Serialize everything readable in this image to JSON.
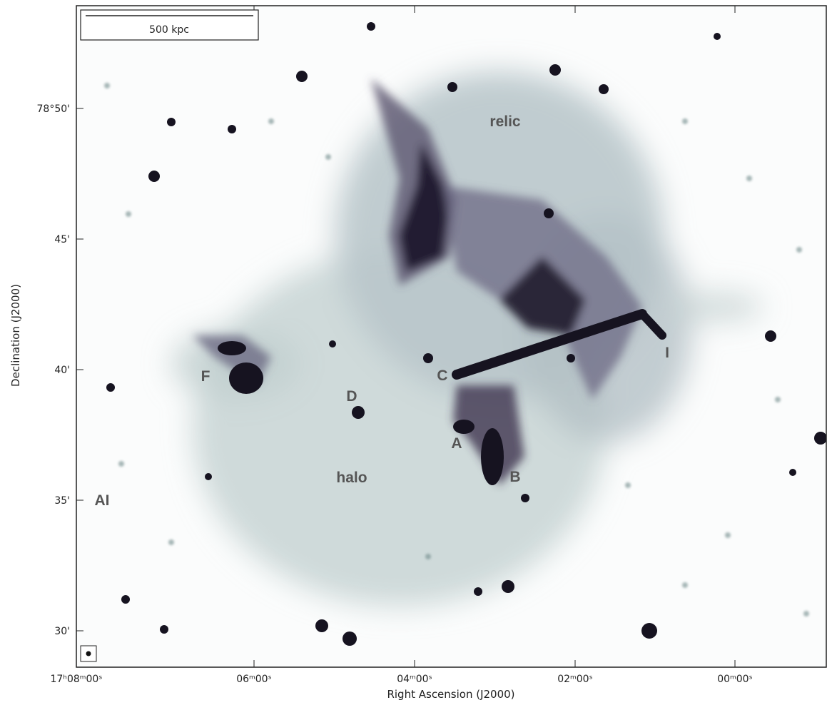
{
  "axes": {
    "x_label": "Right Ascension (J2000)",
    "y_label": "Declination (J2000)",
    "x_ticks": [
      "17ʰ08ᵐ00ˢ",
      "06ᵐ00ˢ",
      "04ᵐ00ˢ",
      "02ᵐ00ˢ",
      "00ᵐ00ˢ"
    ],
    "y_ticks": [
      "78°50'",
      "45'",
      "40'",
      "35'",
      "30'"
    ]
  },
  "scale_bar": "500 kpc",
  "annotations": [
    "relic",
    "I",
    "C",
    "F",
    "D",
    "A",
    "B",
    "halo",
    "AI"
  ]
}
